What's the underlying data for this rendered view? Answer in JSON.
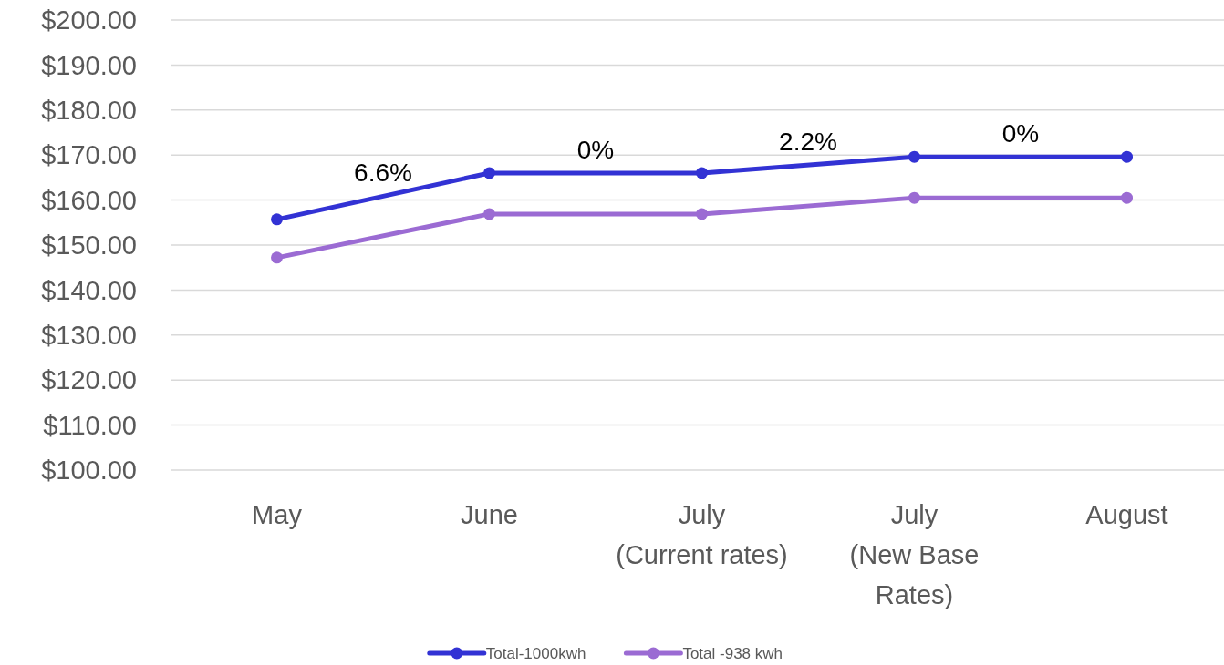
{
  "chart_data": {
    "type": "line",
    "categories": [
      "May",
      "June",
      "July\n(Current rates)",
      "July\n(New Base\nRates)",
      "August"
    ],
    "series": [
      {
        "name": "Total-1000kwh",
        "color": "#3232d4",
        "values": [
          155.7,
          166.0,
          166.0,
          169.6,
          169.6
        ]
      },
      {
        "name": "Total -938 kwh",
        "color": "#9b6bd3",
        "values": [
          147.2,
          156.9,
          156.9,
          160.5,
          160.5
        ]
      }
    ],
    "ylim": [
      100,
      200
    ],
    "yticks": [
      {
        "value": 100,
        "label": "$100.00"
      },
      {
        "value": 110,
        "label": "$110.00"
      },
      {
        "value": 120,
        "label": "$120.00"
      },
      {
        "value": 130,
        "label": "$130.00"
      },
      {
        "value": 140,
        "label": "$140.00"
      },
      {
        "value": 150,
        "label": "$150.00"
      },
      {
        "value": 160,
        "label": "$160.00"
      },
      {
        "value": 170,
        "label": "$170.00"
      },
      {
        "value": 180,
        "label": "$180.00"
      },
      {
        "value": 190,
        "label": "$190.00"
      },
      {
        "value": 200,
        "label": "$200.00"
      }
    ],
    "annotations": [
      "6.6%",
      "0%",
      "2.2%",
      "0%"
    ],
    "grid": "y",
    "legend": "bottom",
    "marker": "circle",
    "line_style": "solid"
  }
}
